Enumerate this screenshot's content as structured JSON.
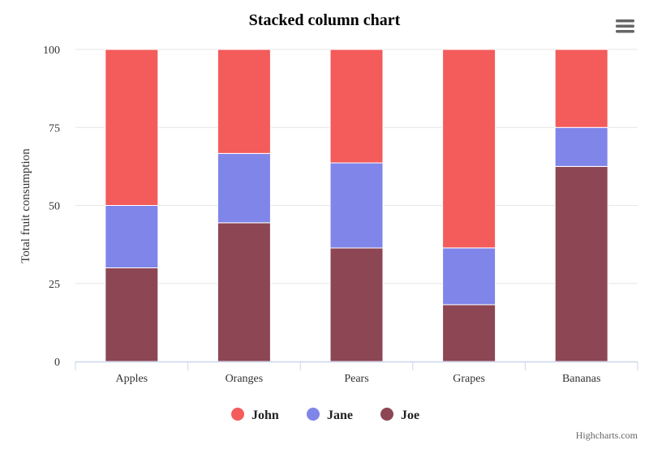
{
  "chart_data": {
    "type": "bar",
    "stacking": "percent",
    "title": "Stacked column chart",
    "xlabel": "",
    "ylabel": "Total fruit consumption",
    "categories": [
      "Apples",
      "Oranges",
      "Pears",
      "Grapes",
      "Bananas"
    ],
    "ylim": [
      0,
      100
    ],
    "yticks": [
      0,
      25,
      50,
      75,
      100
    ],
    "grid": true,
    "legend_position": "bottom-center",
    "series": [
      {
        "name": "John",
        "color": "#f45b5b",
        "values": [
          50,
          33.3,
          36.4,
          63.6,
          25
        ]
      },
      {
        "name": "Jane",
        "color": "#8085e9",
        "values": [
          20,
          22.2,
          27.3,
          18.2,
          12.5
        ]
      },
      {
        "name": "Joe",
        "color": "#8d4654",
        "values": [
          30,
          44.4,
          36.4,
          18.2,
          62.5
        ]
      }
    ]
  },
  "menu": {
    "icon": "hamburger-menu-icon"
  },
  "credits": "Highcharts.com"
}
